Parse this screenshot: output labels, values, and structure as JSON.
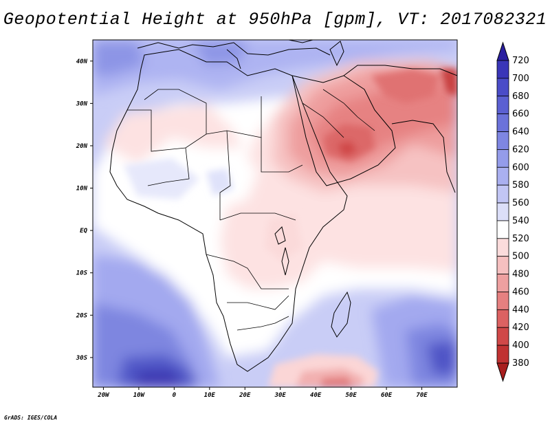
{
  "title": "Geopotential Height at 950hPa [gpm], VT: 2017082321",
  "credit": "GrADS: IGES/COLA",
  "map": {
    "lon_range": [
      -23,
      80
    ],
    "lat_range": [
      -37,
      45
    ],
    "x_ticks": [
      "20W",
      "10W",
      "0",
      "10E",
      "20E",
      "30E",
      "40E",
      "50E",
      "60E",
      "70E"
    ],
    "x_tick_lons": [
      -20,
      -10,
      0,
      10,
      20,
      30,
      40,
      50,
      60,
      70
    ],
    "y_ticks": [
      "40N",
      "30N",
      "20N",
      "10N",
      "EQ",
      "10S",
      "20S",
      "30S"
    ],
    "y_tick_lats": [
      40,
      30,
      20,
      10,
      0,
      -10,
      -20,
      -30
    ]
  },
  "colorbar": {
    "labels": [
      "720",
      "700",
      "680",
      "660",
      "640",
      "620",
      "600",
      "580",
      "560",
      "540",
      "520",
      "500",
      "480",
      "460",
      "440",
      "420",
      "400",
      "380"
    ],
    "colors": [
      "#2a1fa0",
      "#3a36b8",
      "#4a4cc8",
      "#5b60d2",
      "#6b72da",
      "#7e86e2",
      "#949cea",
      "#aab0f0",
      "#c2c6f5",
      "#dcdff9",
      "#ffffff",
      "#fbdcdc",
      "#f6c0c0",
      "#eea0a0",
      "#e68080",
      "#dc6262",
      "#d04848",
      "#c03232",
      "#a81e1e"
    ]
  }
}
